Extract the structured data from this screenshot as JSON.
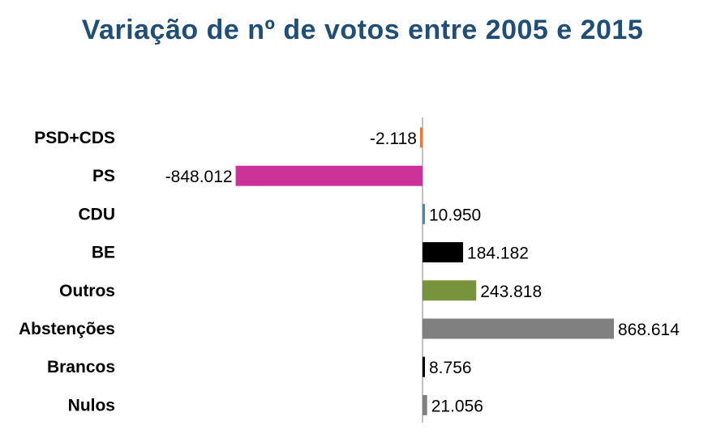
{
  "chart_data": {
    "type": "bar",
    "orientation": "horizontal",
    "title": "Variação de nº de votos entre 2005 e 2015",
    "xlabel": "",
    "ylabel": "",
    "grid": false,
    "legend": "none",
    "categories": [
      "PSD+CDS",
      "PS",
      "CDU",
      "BE",
      "Outros",
      "Abstenções",
      "Brancos",
      "Nulos"
    ],
    "values": [
      -2118,
      -848012,
      10950,
      184182,
      243818,
      868614,
      8756,
      21056
    ],
    "value_labels": [
      "-2.118",
      "-848.012",
      "10.950",
      "184.182",
      "243.818",
      "868.614",
      "8.756",
      "21.056"
    ],
    "colors": [
      "#e07b39",
      "#cc3399",
      "#4f81bd",
      "#000000",
      "#77933c",
      "#808080",
      "#000000",
      "#808080"
    ]
  }
}
